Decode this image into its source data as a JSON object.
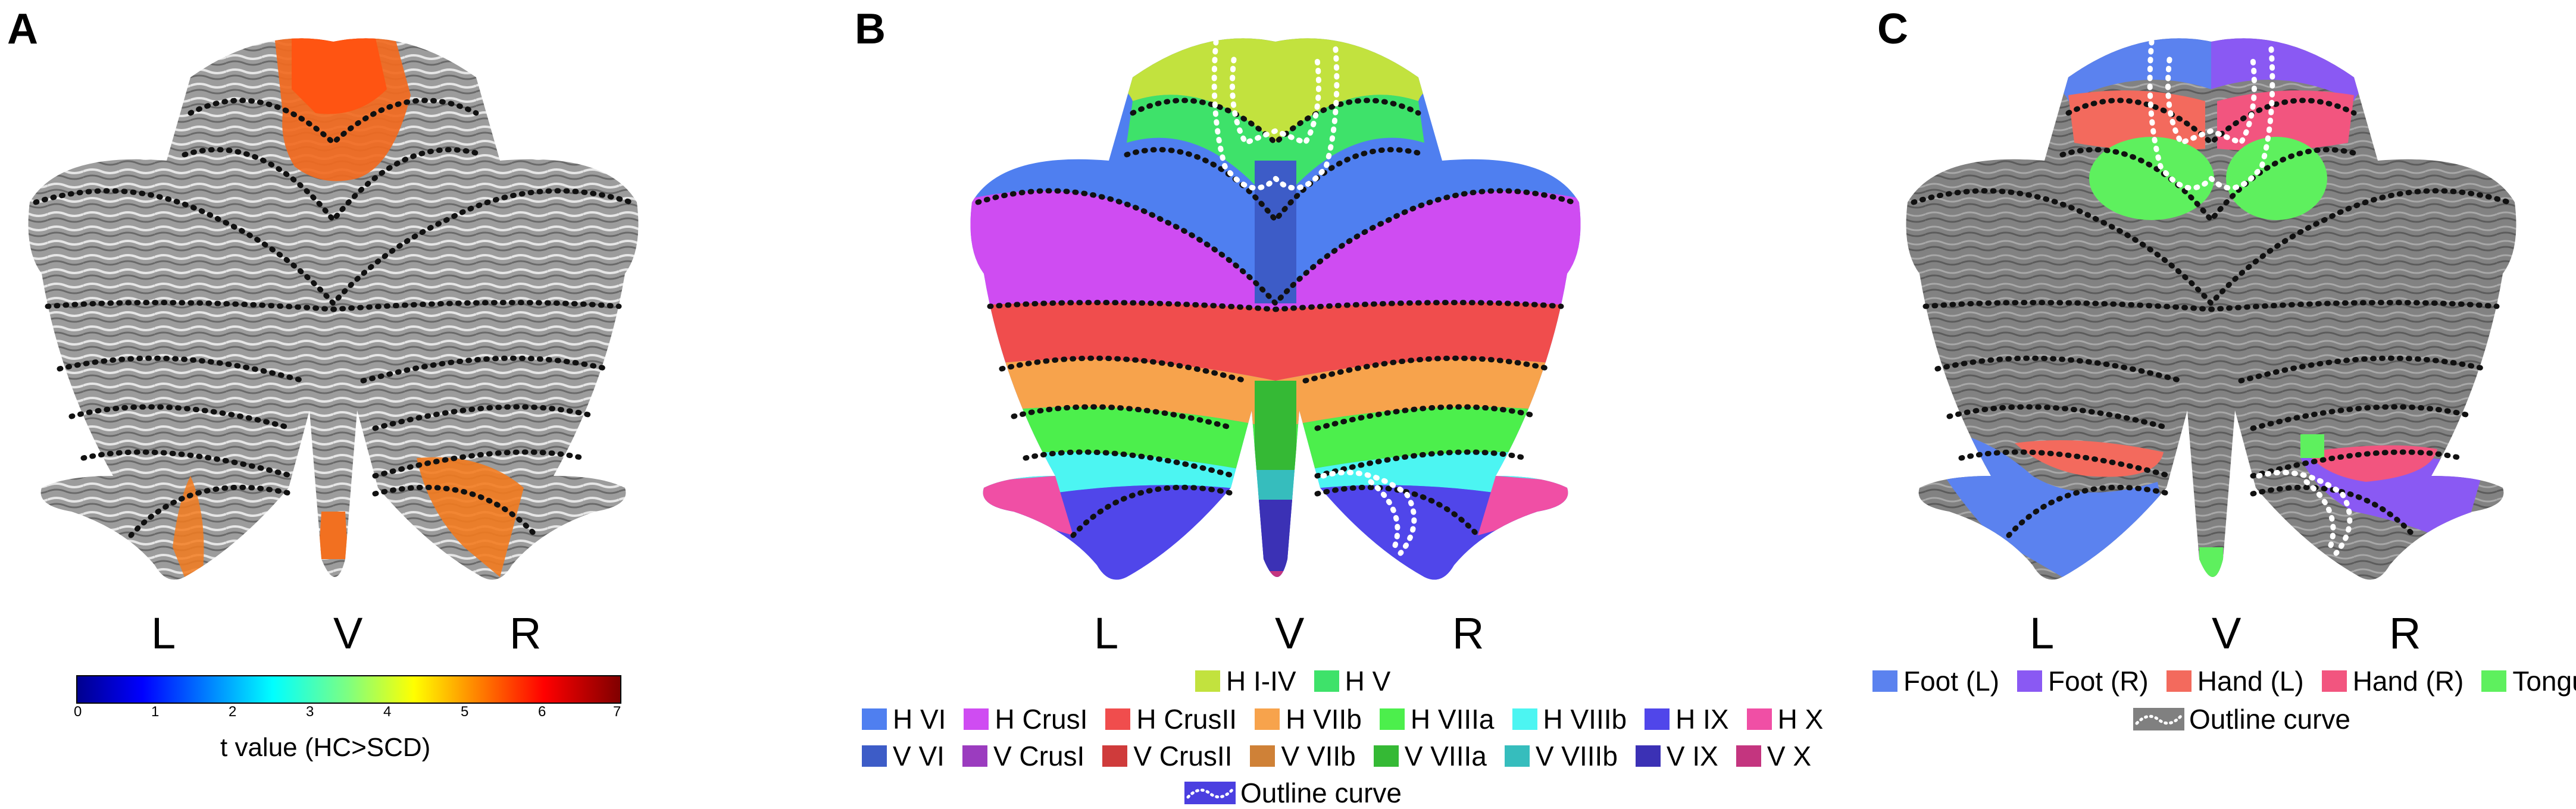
{
  "panels": [
    {
      "letter": "A"
    },
    {
      "letter": "B"
    },
    {
      "letter": "C"
    }
  ],
  "orientation_labels": [
    "L",
    "V",
    "R"
  ],
  "colorbar": {
    "ticks": [
      "0",
      "1",
      "2",
      "3",
      "4",
      "5",
      "6",
      "7"
    ],
    "title": "t value  (HC>SCD)"
  },
  "legend_b": {
    "row1": [
      {
        "label": "H I-IV",
        "color": "#c2e23e"
      },
      {
        "label": "H V",
        "color": "#3ee26a"
      }
    ],
    "row2": [
      {
        "label": "H VI",
        "color": "#4f7ff0"
      },
      {
        "label": "H CrusI",
        "color": "#cf4cf2"
      },
      {
        "label": "H CrusII",
        "color": "#f04d4d"
      },
      {
        "label": "H VIIb",
        "color": "#f7a34c"
      },
      {
        "label": "H VIIIa",
        "color": "#4cef4c"
      },
      {
        "label": "H VIIIb",
        "color": "#4cf5f2"
      },
      {
        "label": "H IX",
        "color": "#5046ea"
      },
      {
        "label": "H X",
        "color": "#f04fa5"
      }
    ],
    "row3": [
      {
        "label": "V VI",
        "color": "#3d5cc7"
      },
      {
        "label": "V CrusI",
        "color": "#9b3cbf"
      },
      {
        "label": "V CrusII",
        "color": "#cf3b3b"
      },
      {
        "label": "V VIIb",
        "color": "#cf8137"
      },
      {
        "label": "V VIIIa",
        "color": "#35b935"
      },
      {
        "label": "V VIIIb",
        "color": "#36bdbd"
      },
      {
        "label": "V IX",
        "color": "#3b31b5"
      },
      {
        "label": "V X",
        "color": "#c4357f"
      }
    ],
    "outline_label": "Outline curve",
    "outline_bg": "#4b3fe0"
  },
  "legend_c": {
    "items": [
      {
        "label": "Foot (L)",
        "color": "#5b82ef"
      },
      {
        "label": "Foot (R)",
        "color": "#8a59f3"
      },
      {
        "label": "Hand (L)",
        "color": "#f36a5d"
      },
      {
        "label": "Hand (R)",
        "color": "#f2557f"
      },
      {
        "label": "Tongue",
        "color": "#5ef05e"
      }
    ],
    "outline_label": "Outline curve",
    "outline_bg": "#808080"
  }
}
